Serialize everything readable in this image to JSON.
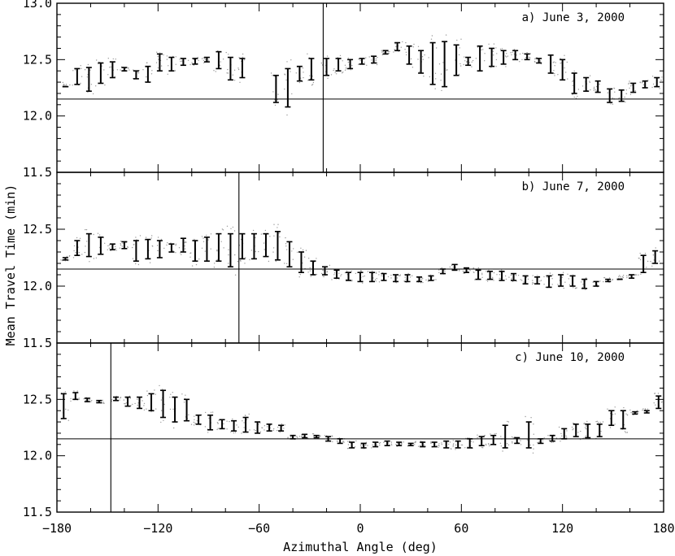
{
  "chart_data": {
    "type": "scatter",
    "subtype": "errorbar-panels",
    "xlabel": "Azimuthal Angle (deg)",
    "ylabel": "Mean Travel Time (min)",
    "xlim": [
      -180,
      180
    ],
    "ylim": [
      11.5,
      13.0
    ],
    "x_ticks": [
      -180,
      -120,
      -60,
      0,
      60,
      120,
      180
    ],
    "x_tick_labels": [
      "−180",
      "−120",
      "−60",
      "0",
      "60",
      "120",
      "180"
    ],
    "y_ticks_top": [
      11.5,
      12.0,
      12.5,
      13.0
    ],
    "y_tick_labels_top": [
      "11.5",
      "12.0",
      "12.5",
      "13.0"
    ],
    "y_ticks": [
      11.5,
      12.0,
      12.5
    ],
    "y_tick_labels": [
      "11.5",
      "12.0",
      "12.5"
    ],
    "reference_line_y": 12.15,
    "grid": false,
    "panels": [
      {
        "title": "a) June 3, 2000",
        "vertical_line_x": -22,
        "series": [
          {
            "x": -175,
            "low": 12.26,
            "high": 12.26
          },
          {
            "x": -168,
            "low": 12.28,
            "high": 12.42
          },
          {
            "x": -161,
            "low": 12.22,
            "high": 12.43
          },
          {
            "x": -154,
            "low": 12.29,
            "high": 12.47
          },
          {
            "x": -147,
            "low": 12.34,
            "high": 12.48
          },
          {
            "x": -140,
            "low": 12.4,
            "high": 12.43
          },
          {
            "x": -133,
            "low": 12.33,
            "high": 12.4
          },
          {
            "x": -126,
            "low": 12.3,
            "high": 12.44
          },
          {
            "x": -119,
            "low": 12.4,
            "high": 12.55
          },
          {
            "x": -112,
            "low": 12.4,
            "high": 12.52
          },
          {
            "x": -105,
            "low": 12.45,
            "high": 12.51
          },
          {
            "x": -98,
            "low": 12.46,
            "high": 12.51
          },
          {
            "x": -91,
            "low": 12.48,
            "high": 12.52
          },
          {
            "x": -84,
            "low": 12.42,
            "high": 12.57
          },
          {
            "x": -77,
            "low": 12.32,
            "high": 12.52
          },
          {
            "x": -70,
            "low": 12.34,
            "high": 12.51
          },
          {
            "x": -50,
            "low": 12.12,
            "high": 12.36
          },
          {
            "x": -43,
            "low": 12.08,
            "high": 12.42
          },
          {
            "x": -36,
            "low": 12.31,
            "high": 12.44
          },
          {
            "x": -29,
            "low": 12.32,
            "high": 12.51
          },
          {
            "x": -20,
            "low": 12.36,
            "high": 12.51
          },
          {
            "x": -13,
            "low": 12.4,
            "high": 12.51
          },
          {
            "x": -6,
            "low": 12.42,
            "high": 12.5
          },
          {
            "x": 1,
            "low": 12.46,
            "high": 12.51
          },
          {
            "x": 8,
            "low": 12.47,
            "high": 12.53
          },
          {
            "x": 15,
            "low": 12.55,
            "high": 12.58
          },
          {
            "x": 22,
            "low": 12.58,
            "high": 12.65
          },
          {
            "x": 29,
            "low": 12.46,
            "high": 12.62
          },
          {
            "x": 36,
            "low": 12.38,
            "high": 12.58
          },
          {
            "x": 43,
            "low": 12.28,
            "high": 12.65
          },
          {
            "x": 50,
            "low": 12.26,
            "high": 12.66
          },
          {
            "x": 57,
            "low": 12.36,
            "high": 12.63
          },
          {
            "x": 64,
            "low": 12.45,
            "high": 12.52
          },
          {
            "x": 71,
            "low": 12.4,
            "high": 12.62
          },
          {
            "x": 78,
            "low": 12.44,
            "high": 12.6
          },
          {
            "x": 85,
            "low": 12.46,
            "high": 12.58
          },
          {
            "x": 92,
            "low": 12.5,
            "high": 12.58
          },
          {
            "x": 99,
            "low": 12.5,
            "high": 12.55
          },
          {
            "x": 106,
            "low": 12.47,
            "high": 12.51
          },
          {
            "x": 113,
            "low": 12.38,
            "high": 12.54
          },
          {
            "x": 120,
            "low": 12.32,
            "high": 12.5
          },
          {
            "x": 127,
            "low": 12.2,
            "high": 12.38
          },
          {
            "x": 134,
            "low": 12.22,
            "high": 12.34
          },
          {
            "x": 141,
            "low": 12.21,
            "high": 12.31
          },
          {
            "x": 148,
            "low": 12.12,
            "high": 12.24
          },
          {
            "x": 155,
            "low": 12.13,
            "high": 12.23
          },
          {
            "x": 162,
            "low": 12.21,
            "high": 12.29
          },
          {
            "x": 169,
            "low": 12.25,
            "high": 12.31
          },
          {
            "x": 176,
            "low": 12.26,
            "high": 12.34
          }
        ]
      },
      {
        "title": "b) June 7, 2000",
        "vertical_line_x": -72,
        "series": [
          {
            "x": -175,
            "low": 12.23,
            "high": 12.25
          },
          {
            "x": -168,
            "low": 12.27,
            "high": 12.4
          },
          {
            "x": -161,
            "low": 12.26,
            "high": 12.46
          },
          {
            "x": -154,
            "low": 12.28,
            "high": 12.43
          },
          {
            "x": -147,
            "low": 12.32,
            "high": 12.37
          },
          {
            "x": -140,
            "low": 12.33,
            "high": 12.39
          },
          {
            "x": -133,
            "low": 12.22,
            "high": 12.4
          },
          {
            "x": -126,
            "low": 12.24,
            "high": 12.41
          },
          {
            "x": -119,
            "low": 12.25,
            "high": 12.4
          },
          {
            "x": -112,
            "low": 12.3,
            "high": 12.37
          },
          {
            "x": -105,
            "low": 12.3,
            "high": 12.42
          },
          {
            "x": -98,
            "low": 12.22,
            "high": 12.4
          },
          {
            "x": -91,
            "low": 12.22,
            "high": 12.43
          },
          {
            "x": -84,
            "low": 12.22,
            "high": 12.46
          },
          {
            "x": -77,
            "low": 12.17,
            "high": 12.46
          },
          {
            "x": -70,
            "low": 12.24,
            "high": 12.46
          },
          {
            "x": -63,
            "low": 12.24,
            "high": 12.46
          },
          {
            "x": -56,
            "low": 12.26,
            "high": 12.46
          },
          {
            "x": -49,
            "low": 12.23,
            "high": 12.48
          },
          {
            "x": -42,
            "low": 12.17,
            "high": 12.39
          },
          {
            "x": -35,
            "low": 12.12,
            "high": 12.3
          },
          {
            "x": -28,
            "low": 12.1,
            "high": 12.22
          },
          {
            "x": -21,
            "low": 12.1,
            "high": 12.17
          },
          {
            "x": -14,
            "low": 12.07,
            "high": 12.14
          },
          {
            "x": -7,
            "low": 12.05,
            "high": 12.12
          },
          {
            "x": 0,
            "low": 12.04,
            "high": 12.12
          },
          {
            "x": 7,
            "low": 12.04,
            "high": 12.12
          },
          {
            "x": 14,
            "low": 12.05,
            "high": 12.11
          },
          {
            "x": 21,
            "low": 12.04,
            "high": 12.1
          },
          {
            "x": 28,
            "low": 12.04,
            "high": 12.1
          },
          {
            "x": 35,
            "low": 12.04,
            "high": 12.08
          },
          {
            "x": 42,
            "low": 12.05,
            "high": 12.09
          },
          {
            "x": 49,
            "low": 12.11,
            "high": 12.15
          },
          {
            "x": 56,
            "low": 12.14,
            "high": 12.19
          },
          {
            "x": 63,
            "low": 12.12,
            "high": 12.16
          },
          {
            "x": 70,
            "low": 12.06,
            "high": 12.14
          },
          {
            "x": 77,
            "low": 12.06,
            "high": 12.13
          },
          {
            "x": 84,
            "low": 12.05,
            "high": 12.13
          },
          {
            "x": 91,
            "low": 12.05,
            "high": 12.11
          },
          {
            "x": 98,
            "low": 12.02,
            "high": 12.09
          },
          {
            "x": 105,
            "low": 12.02,
            "high": 12.08
          },
          {
            "x": 112,
            "low": 11.99,
            "high": 12.09
          },
          {
            "x": 119,
            "low": 12.0,
            "high": 12.1
          },
          {
            "x": 126,
            "low": 12.0,
            "high": 12.09
          },
          {
            "x": 133,
            "low": 11.98,
            "high": 12.06
          },
          {
            "x": 140,
            "low": 12.0,
            "high": 12.04
          },
          {
            "x": 147,
            "low": 12.04,
            "high": 12.06
          },
          {
            "x": 154,
            "low": 12.06,
            "high": 12.06
          },
          {
            "x": 161,
            "low": 12.07,
            "high": 12.1
          },
          {
            "x": 168,
            "low": 12.12,
            "high": 12.27
          },
          {
            "x": 175,
            "low": 12.2,
            "high": 12.31
          }
        ]
      },
      {
        "title": "c) June 10, 2000",
        "vertical_line_x": -148,
        "series": [
          {
            "x": -176,
            "low": 12.33,
            "high": 12.55
          },
          {
            "x": -169,
            "low": 12.5,
            "high": 12.56
          },
          {
            "x": -162,
            "low": 12.48,
            "high": 12.51
          },
          {
            "x": -155,
            "low": 12.47,
            "high": 12.49
          },
          {
            "x": -145,
            "low": 12.49,
            "high": 12.52
          },
          {
            "x": -138,
            "low": 12.44,
            "high": 12.52
          },
          {
            "x": -131,
            "low": 12.42,
            "high": 12.52
          },
          {
            "x": -124,
            "low": 12.4,
            "high": 12.55
          },
          {
            "x": -117,
            "low": 12.34,
            "high": 12.58
          },
          {
            "x": -110,
            "low": 12.3,
            "high": 12.52
          },
          {
            "x": -103,
            "low": 12.31,
            "high": 12.5
          },
          {
            "x": -96,
            "low": 12.28,
            "high": 12.36
          },
          {
            "x": -89,
            "low": 12.23,
            "high": 12.36
          },
          {
            "x": -82,
            "low": 12.24,
            "high": 12.32
          },
          {
            "x": -75,
            "low": 12.22,
            "high": 12.31
          },
          {
            "x": -68,
            "low": 12.21,
            "high": 12.34
          },
          {
            "x": -61,
            "low": 12.2,
            "high": 12.3
          },
          {
            "x": -54,
            "low": 12.22,
            "high": 12.28
          },
          {
            "x": -47,
            "low": 12.22,
            "high": 12.27
          },
          {
            "x": -40,
            "low": 12.15,
            "high": 12.18
          },
          {
            "x": -33,
            "low": 12.16,
            "high": 12.19
          },
          {
            "x": -26,
            "low": 12.16,
            "high": 12.18
          },
          {
            "x": -19,
            "low": 12.13,
            "high": 12.17
          },
          {
            "x": -12,
            "low": 12.11,
            "high": 12.15
          },
          {
            "x": -5,
            "low": 12.07,
            "high": 12.12
          },
          {
            "x": 2,
            "low": 12.07,
            "high": 12.11
          },
          {
            "x": 9,
            "low": 12.08,
            "high": 12.12
          },
          {
            "x": 16,
            "low": 12.09,
            "high": 12.13
          },
          {
            "x": 23,
            "low": 12.09,
            "high": 12.12
          },
          {
            "x": 30,
            "low": 12.09,
            "high": 12.11
          },
          {
            "x": 37,
            "low": 12.08,
            "high": 12.12
          },
          {
            "x": 44,
            "low": 12.08,
            "high": 12.12
          },
          {
            "x": 51,
            "low": 12.07,
            "high": 12.13
          },
          {
            "x": 58,
            "low": 12.07,
            "high": 12.13
          },
          {
            "x": 65,
            "low": 12.07,
            "high": 12.15
          },
          {
            "x": 72,
            "low": 12.09,
            "high": 12.17
          },
          {
            "x": 79,
            "low": 12.1,
            "high": 12.18
          },
          {
            "x": 86,
            "low": 12.07,
            "high": 12.27
          },
          {
            "x": 93,
            "low": 12.11,
            "high": 12.16
          },
          {
            "x": 100,
            "low": 12.07,
            "high": 12.3
          },
          {
            "x": 107,
            "low": 12.11,
            "high": 12.15
          },
          {
            "x": 114,
            "low": 12.13,
            "high": 12.18
          },
          {
            "x": 121,
            "low": 12.15,
            "high": 12.24
          },
          {
            "x": 128,
            "low": 12.17,
            "high": 12.28
          },
          {
            "x": 135,
            "low": 12.16,
            "high": 12.28
          },
          {
            "x": 142,
            "low": 12.17,
            "high": 12.28
          },
          {
            "x": 149,
            "low": 12.27,
            "high": 12.4
          },
          {
            "x": 156,
            "low": 12.24,
            "high": 12.4
          },
          {
            "x": 163,
            "low": 12.37,
            "high": 12.39
          },
          {
            "x": 170,
            "low": 12.38,
            "high": 12.4
          },
          {
            "x": 177,
            "low": 12.42,
            "high": 12.53
          }
        ]
      }
    ]
  }
}
